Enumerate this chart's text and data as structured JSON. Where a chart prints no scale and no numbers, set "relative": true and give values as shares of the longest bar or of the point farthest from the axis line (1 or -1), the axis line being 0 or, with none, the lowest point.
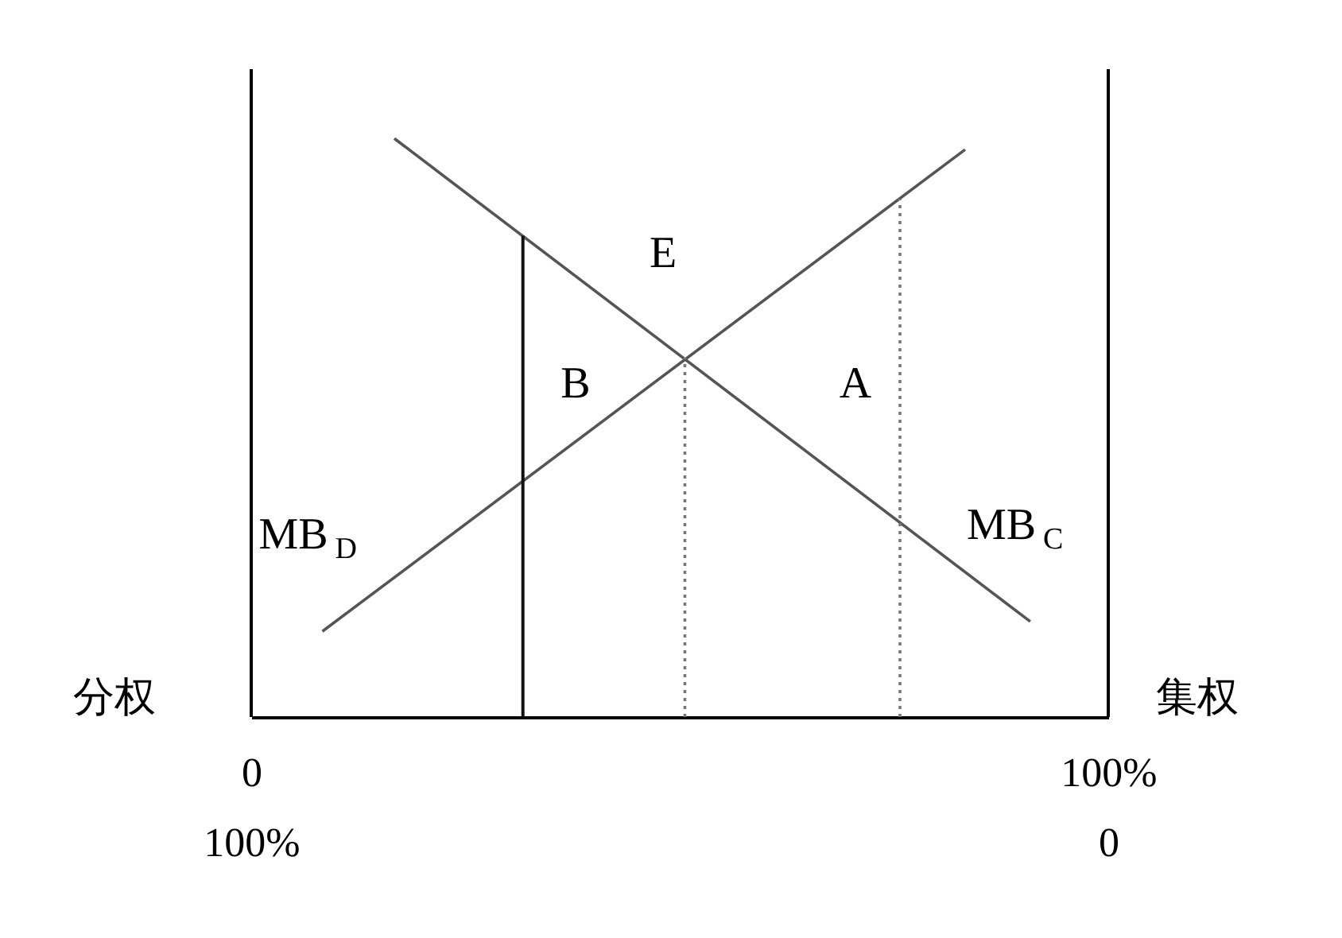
{
  "chart_data": {
    "type": "line",
    "relative": true,
    "xlim": [
      0,
      100
    ],
    "xticks": [
      0,
      {
        "value": 100,
        "label": "100%"
      }
    ],
    "x2lim": [
      100,
      0
    ],
    "x2ticks": [
      {
        "value": 100,
        "label": "100%"
      },
      0
    ],
    "tick_labels": "x",
    "grid": false,
    "series": [
      {
        "name": "MB$_{D}$",
        "color": "#555555",
        "x": [
          8.3,
          83.3
        ],
        "values": [
          0.148,
          0.981
        ]
      },
      {
        "name": "MB$_{C}$",
        "color": "#555555",
        "x": [
          16.7,
          90.9
        ],
        "values": [
          1,
          0.165
        ]
      },
      {
        "color": "#111111",
        "x": [
          31.7,
          31.7
        ],
        "values": [
          0,
          0.832
        ],
        "line_style": "solid"
      },
      {
        "color": "#777777",
        "x": [
          50.6,
          50.6
        ],
        "values": [
          0,
          0.621
        ],
        "line_style": "dotted"
      },
      {
        "color": "#777777",
        "x": [
          75.7,
          75.7
        ],
        "values": [
          0,
          0.896
        ],
        "line_style": "dotted"
      }
    ],
    "annotations": [
      "分权",
      "集权",
      "E",
      "B",
      "A"
    ]
  }
}
